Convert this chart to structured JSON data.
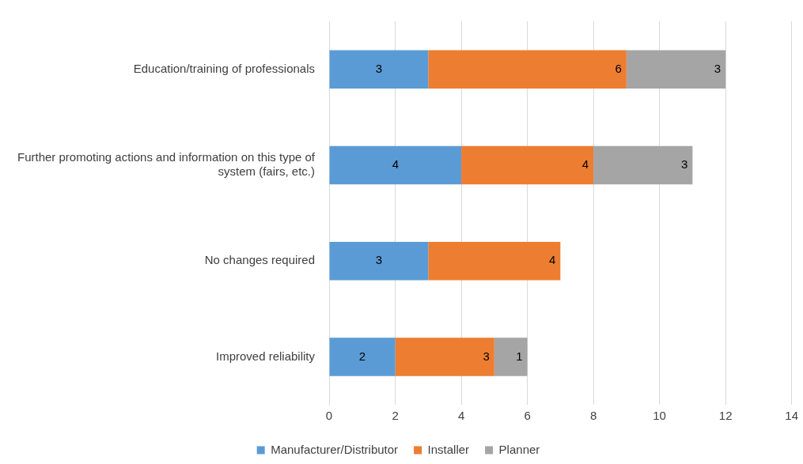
{
  "chart_data": {
    "type": "bar",
    "orientation": "horizontal",
    "stacked": true,
    "categories": [
      "Education/training of professionals",
      "Further promoting actions and information on this type of system (fairs, etc.)",
      "No changes required",
      "Improved reliability"
    ],
    "series": [
      {
        "name": "Manufacturer/Distributor",
        "color": "#5b9bd5",
        "values": [
          3,
          4,
          3,
          2
        ]
      },
      {
        "name": "Installer",
        "color": "#ed7d31",
        "values": [
          6,
          4,
          4,
          3
        ]
      },
      {
        "name": "Planner",
        "color": "#a5a5a5",
        "values": [
          3,
          3,
          null,
          1
        ]
      }
    ],
    "xlim": [
      0,
      14
    ],
    "xticks": [
      0,
      2,
      4,
      6,
      8,
      10,
      12,
      14
    ],
    "grid": "x",
    "legend": "bottom",
    "data_labels": true
  }
}
